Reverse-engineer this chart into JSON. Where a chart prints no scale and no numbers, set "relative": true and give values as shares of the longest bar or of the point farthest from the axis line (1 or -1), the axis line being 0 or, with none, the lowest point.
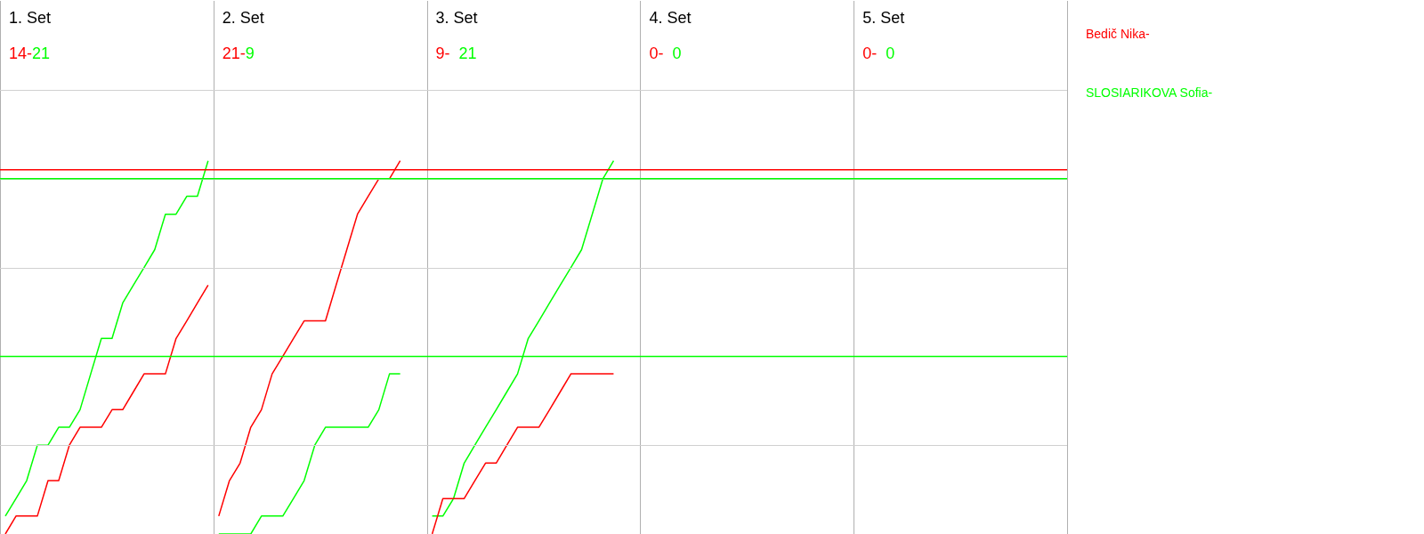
{
  "chart_data": {
    "type": "line",
    "relative": true,
    "marker": "none",
    "line_style": "solid",
    "categories": [
      null,
      null,
      null,
      null,
      null,
      null,
      null,
      null,
      null,
      null,
      null,
      null,
      null,
      null,
      null,
      null,
      null,
      null,
      null,
      null,
      null,
      null,
      null,
      null,
      null,
      null,
      null,
      null,
      null,
      null,
      null,
      null,
      null,
      null,
      null,
      null,
      null,
      null,
      null,
      null,
      null,
      null,
      null,
      null,
      null,
      null,
      null,
      null,
      null,
      null,
      null,
      null,
      null,
      null,
      null,
      null,
      null,
      null,
      null,
      null,
      null,
      null,
      null,
      null,
      null,
      null,
      null,
      null,
      null,
      null,
      null,
      null,
      null,
      null,
      null,
      null,
      null,
      null,
      null,
      null,
      null,
      null,
      null,
      null,
      null,
      null,
      null,
      null,
      null,
      null,
      null,
      null,
      null,
      null,
      null,
      null,
      null,
      null,
      null,
      null
    ],
    "series": [
      {
        "name": "Bedič Nika-",
        "color": "#ff0000",
        "values": [
          0,
          0.048,
          0.048,
          0.048,
          0.143,
          0.143,
          0.238,
          0.286,
          0.286,
          0.286,
          0.333,
          0.333,
          0.381,
          0.429,
          0.429,
          0.429,
          0.524,
          0.571,
          0.619,
          0.667,
          null,
          null,
          null,
          null,
          null,
          null,
          null,
          null,
          null,
          null,
          null,
          null,
          null,
          null,
          null,
          null,
          null,
          null,
          null,
          null,
          null,
          null,
          null,
          null,
          null,
          null,
          null,
          null,
          null,
          null,
          null,
          null,
          null,
          null,
          null,
          null,
          null,
          null,
          null,
          null,
          null,
          null,
          null,
          null,
          null,
          null,
          null,
          null,
          null,
          null,
          null,
          null,
          null,
          null,
          null,
          null,
          null,
          null,
          null,
          null,
          null,
          null,
          null,
          null,
          null,
          null,
          null,
          null,
          null,
          null,
          null,
          null,
          null,
          null,
          null,
          null,
          null,
          null,
          null,
          null
        ]
      },
      {
        "name": "SLOSIARIKOVA Sofia-",
        "color": "#00ff00",
        "values": [
          0.048,
          0.095,
          0.143,
          0.238,
          0.238,
          0.286,
          0.286,
          0.333,
          0.429,
          0.524,
          0.524,
          0.619,
          0.667,
          0.714,
          0.762,
          0.857,
          0.857,
          0.905,
          0.905,
          1,
          null,
          null,
          null,
          null,
          null,
          null,
          null,
          null,
          null,
          null,
          null,
          null,
          null,
          null,
          null,
          null,
          null,
          null,
          null,
          null,
          null,
          null,
          null,
          null,
          null,
          null,
          null,
          null,
          null,
          null,
          null,
          null,
          null,
          null,
          null,
          null,
          null,
          null,
          null,
          null,
          null,
          null,
          null,
          null,
          null,
          null,
          null,
          null,
          null,
          null,
          null,
          null,
          null,
          null,
          null,
          null,
          null,
          null,
          null,
          null,
          null,
          null,
          null,
          null,
          null,
          null,
          null,
          null,
          null,
          null,
          null,
          null,
          null,
          null,
          null,
          null,
          null,
          null,
          null,
          null
        ]
      },
      {
        "color": "#ff0000",
        "values": [
          null,
          null,
          null,
          null,
          null,
          null,
          null,
          null,
          null,
          null,
          null,
          null,
          null,
          null,
          null,
          null,
          null,
          null,
          null,
          null,
          0.048,
          0.143,
          0.19,
          0.286,
          0.333,
          0.429,
          0.476,
          0.524,
          0.571,
          0.571,
          0.571,
          0.667,
          0.762,
          0.857,
          0.905,
          0.952,
          0.952,
          1,
          null,
          null,
          null,
          null,
          null,
          null,
          null,
          null,
          null,
          null,
          null,
          null,
          null,
          null,
          null,
          null,
          null,
          null,
          null,
          null,
          null,
          null,
          null,
          null,
          null,
          null,
          null,
          null,
          null,
          null,
          null,
          null,
          null,
          null,
          null,
          null,
          null,
          null,
          null,
          null,
          null,
          null,
          null,
          null,
          null,
          null,
          null,
          null,
          null,
          null,
          null,
          null,
          null,
          null,
          null,
          null,
          null,
          null,
          null,
          null,
          null,
          null
        ]
      },
      {
        "color": "#00ff00",
        "values": [
          null,
          null,
          null,
          null,
          null,
          null,
          null,
          null,
          null,
          null,
          null,
          null,
          null,
          null,
          null,
          null,
          null,
          null,
          null,
          null,
          0,
          0,
          0,
          0,
          0.048,
          0.048,
          0.048,
          0.095,
          0.143,
          0.238,
          0.286,
          0.286,
          0.286,
          0.286,
          0.286,
          0.333,
          0.429,
          0.429,
          null,
          null,
          null,
          null,
          null,
          null,
          null,
          null,
          null,
          null,
          null,
          null,
          null,
          null,
          null,
          null,
          null,
          null,
          null,
          null,
          null,
          null,
          null,
          null,
          null,
          null,
          null,
          null,
          null,
          null,
          null,
          null,
          null,
          null,
          null,
          null,
          null,
          null,
          null,
          null,
          null,
          null,
          null,
          null,
          null,
          null,
          null,
          null,
          null,
          null,
          null,
          null,
          null,
          null,
          null,
          null,
          null,
          null,
          null,
          null,
          null,
          null
        ]
      },
      {
        "color": "#ff0000",
        "values": [
          null,
          null,
          null,
          null,
          null,
          null,
          null,
          null,
          null,
          null,
          null,
          null,
          null,
          null,
          null,
          null,
          null,
          null,
          null,
          null,
          null,
          null,
          null,
          null,
          null,
          null,
          null,
          null,
          null,
          null,
          null,
          null,
          null,
          null,
          null,
          null,
          null,
          null,
          null,
          null,
          0,
          0.095,
          0.095,
          0.095,
          0.143,
          0.19,
          0.19,
          0.238,
          0.286,
          0.286,
          0.286,
          0.333,
          0.381,
          0.429,
          0.429,
          0.429,
          0.429,
          0.429,
          null,
          null,
          null,
          null,
          null,
          null,
          null,
          null,
          null,
          null,
          null,
          null,
          null,
          null,
          null,
          null,
          null,
          null,
          null,
          null,
          null,
          null,
          null,
          null,
          null,
          null,
          null,
          null,
          null,
          null,
          null,
          null,
          null,
          null,
          null,
          null,
          null,
          null,
          null,
          null,
          null,
          null
        ]
      },
      {
        "color": "#00ff00",
        "values": [
          null,
          null,
          null,
          null,
          null,
          null,
          null,
          null,
          null,
          null,
          null,
          null,
          null,
          null,
          null,
          null,
          null,
          null,
          null,
          null,
          null,
          null,
          null,
          null,
          null,
          null,
          null,
          null,
          null,
          null,
          null,
          null,
          null,
          null,
          null,
          null,
          null,
          null,
          null,
          null,
          0.048,
          0.048,
          0.095,
          0.19,
          0.238,
          0.286,
          0.333,
          0.381,
          0.429,
          0.524,
          0.571,
          0.619,
          0.667,
          0.714,
          0.762,
          0.857,
          0.952,
          1,
          null,
          null,
          null,
          null,
          null,
          null,
          null,
          null,
          null,
          null,
          null,
          null,
          null,
          null,
          null,
          null,
          null,
          null,
          null,
          null,
          null,
          null,
          null,
          null,
          null,
          null,
          null,
          null,
          null,
          null,
          null,
          null,
          null,
          null,
          null,
          null,
          null,
          null,
          null,
          null,
          null,
          null
        ]
      }
    ],
    "ref_lines": [
      {
        "axis": "y",
        "value": 0.976,
        "color": "#ff0000"
      },
      {
        "axis": "y",
        "value": 0.952,
        "color": "#00ff00"
      },
      {
        "axis": "y",
        "value": 0.476,
        "color": "#00ff00"
      }
    ],
    "annotations": [
      "1. Set",
      "14-",
      "21",
      "2. Set",
      "21-",
      "9",
      "3. Set",
      "9- ",
      " 21",
      "4. Set",
      "0- ",
      " 0",
      "5. Set",
      "0- ",
      " 0"
    ]
  }
}
